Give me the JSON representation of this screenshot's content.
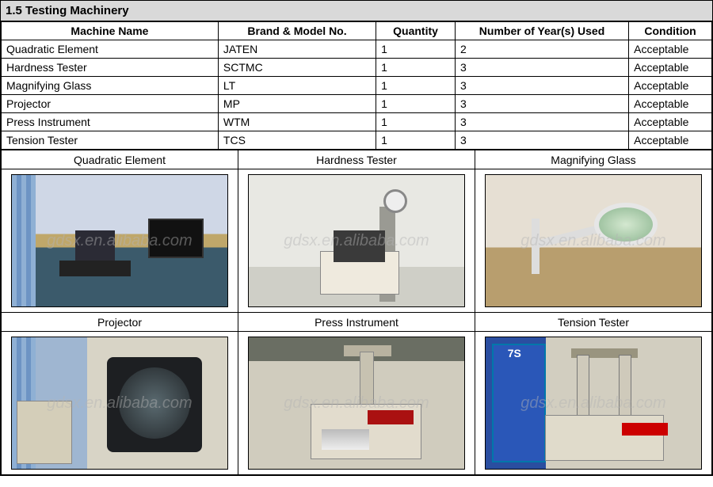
{
  "section_title": "1.5 Testing Machinery",
  "watermark": "gdsx.en.alibaba.com",
  "table": {
    "columns": [
      "Machine Name",
      "Brand & Model No.",
      "Quantity",
      "Number of Year(s) Used",
      "Condition"
    ],
    "rows": [
      [
        "Quadratic Element",
        "JATEN",
        "1",
        "2",
        "Acceptable"
      ],
      [
        "Hardness Tester",
        "SCTMC",
        "1",
        "3",
        "Acceptable"
      ],
      [
        "Magnifying Glass",
        "LT",
        "1",
        "3",
        "Acceptable"
      ],
      [
        "Projector",
        "MP",
        "1",
        "3",
        "Acceptable"
      ],
      [
        "Press Instrument",
        "WTM",
        "1",
        "3",
        "Acceptable"
      ],
      [
        "Tension Tester",
        "TCS",
        "1",
        "3",
        "Acceptable"
      ]
    ]
  },
  "photo_grid": {
    "row1_labels": [
      "Quadratic Element",
      "Hardness Tester",
      "Magnifying Glass"
    ],
    "row2_labels": [
      "Projector",
      "Press Instrument",
      "Tension Tester"
    ]
  },
  "colors": {
    "header_bg": "#d9d9d9",
    "border": "#000000",
    "text": "#000000"
  }
}
